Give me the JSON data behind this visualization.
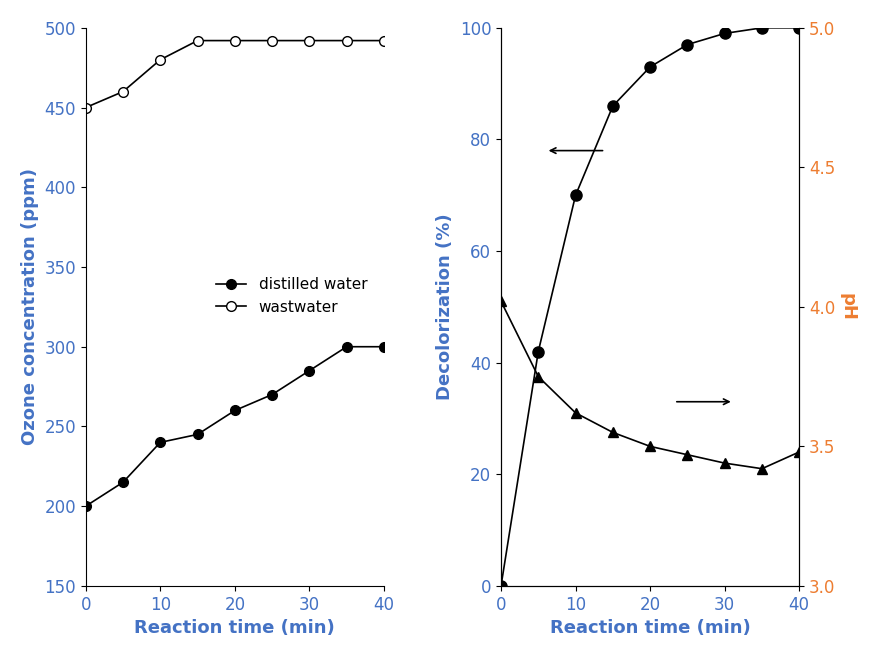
{
  "left": {
    "x": [
      0,
      5,
      10,
      15,
      20,
      25,
      30,
      35,
      40
    ],
    "distilled_water": [
      200,
      215,
      240,
      245,
      260,
      270,
      285,
      300,
      300
    ],
    "wastewater": [
      450,
      460,
      480,
      492,
      492,
      492,
      492,
      492,
      492
    ],
    "ylabel": "Ozone concentration (ppm)",
    "xlabel": "Reaction time (min)",
    "ylim": [
      150,
      500
    ],
    "yticks": [
      150,
      200,
      250,
      300,
      350,
      400,
      450,
      500
    ],
    "xlim": [
      0,
      40
    ],
    "xticks": [
      0,
      10,
      20,
      30,
      40
    ],
    "legend_distilled": "distilled water",
    "legend_waste": "wastwater"
  },
  "right": {
    "x": [
      0,
      5,
      10,
      15,
      20,
      25,
      30,
      35,
      40
    ],
    "decolorization": [
      0,
      42,
      70,
      86,
      93,
      97,
      99,
      100,
      100
    ],
    "pH": [
      4.02,
      3.75,
      3.62,
      3.55,
      3.5,
      3.47,
      3.44,
      3.42,
      3.48
    ],
    "ylabel_left": "Decolorization (%)",
    "ylabel_right": "pH",
    "xlabel": "Reaction time (min)",
    "ylim_left": [
      0,
      100
    ],
    "yticks_left": [
      0,
      20,
      40,
      60,
      80,
      100
    ],
    "ylim_right": [
      3.0,
      5.0
    ],
    "yticks_right": [
      3.0,
      3.5,
      4.0,
      4.5,
      5.0
    ],
    "xlim": [
      0,
      40
    ],
    "xticks": [
      0,
      10,
      20,
      30,
      40
    ]
  },
  "line_color": "#000000",
  "axis_label_color": "#4472c4",
  "ph_label_color": "#ed7d31",
  "label_fontsize": 13,
  "tick_fontsize": 12,
  "legend_fontsize": 11
}
